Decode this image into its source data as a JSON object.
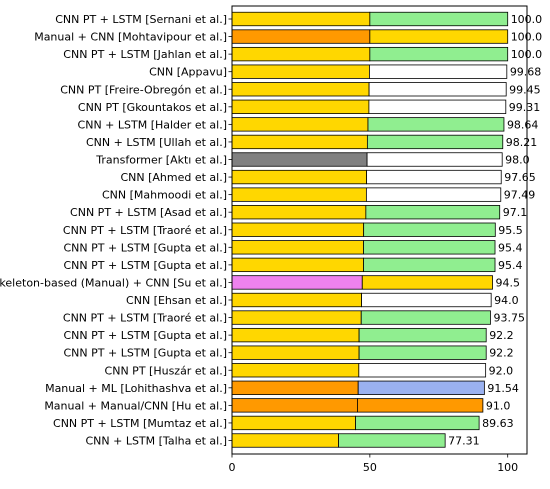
{
  "chart_data": {
    "type": "bar",
    "orientation": "horizontal",
    "stacked": true,
    "xlim": [
      0,
      107
    ],
    "xticks": [
      0,
      50,
      100
    ],
    "grid": false,
    "categories": [
      "CNN PT + LSTM [Sernani et al.]",
      "Manual + CNN [Mohtavipour et al.]",
      "CNN PT + LSTM [Jahlan et al.]",
      "CNN [Appavu]",
      "CNN PT [Freire-Obregón et al.]",
      "CNN PT [Gkountakos et al.]",
      "CNN + LSTM [Halder et al.]",
      "CNN + LSTM [Ullah et al.]",
      "Transformer [Aktı et al.]",
      "CNN [Ahmed et al.]",
      "CNN [Mahmoodi et al.]",
      "CNN PT + LSTM [Asad et al.]",
      "CNN PT + LSTM [Traoré et al.]",
      "CNN PT + LSTM [Gupta et al.]",
      "CNN PT + LSTM [Gupta et al.]",
      "Skeleton-based (Manual) + CNN [Su et al.]",
      "CNN [Ehsan et al.]",
      "CNN PT + LSTM [Traoré et al.]",
      "CNN PT + LSTM [Gupta et al.]",
      "CNN PT + LSTM [Gupta et al.]",
      "CNN PT [Huszár et al.]",
      "Manual + ML [Lohithashva et al.]",
      "Manual + Manual/CNN [Hu et al.]",
      "CNN PT + LSTM [Mumtaz et al.]",
      "CNN + LSTM [Talha et al.]"
    ],
    "values": [
      100.0,
      100.0,
      100.0,
      99.68,
      99.45,
      99.31,
      98.64,
      98.21,
      98.0,
      97.65,
      97.49,
      97.1,
      95.5,
      95.4,
      95.4,
      94.5,
      94.0,
      93.75,
      92.2,
      92.2,
      92.0,
      91.54,
      91.0,
      89.63,
      77.31
    ],
    "value_labels": [
      "100.0",
      "100.0",
      "100.0",
      "99.68",
      "99.45",
      "99.31",
      "98.64",
      "98.21",
      "98.0",
      "97.65",
      "97.49",
      "97.1",
      "95.5",
      "95.4",
      "95.4",
      "94.5",
      "94.0",
      "93.75",
      "92.2",
      "92.2",
      "92.0",
      "91.54",
      "91.0",
      "89.63",
      "77.31"
    ],
    "first_segment_fraction": 0.5,
    "first_segment_colors": [
      "#ffd700",
      "#ff9900",
      "#ffd700",
      "#ffd700",
      "#ffd700",
      "#ffd700",
      "#ffd700",
      "#ffd700",
      "#808080",
      "#ffd700",
      "#ffd700",
      "#ffd700",
      "#ffd700",
      "#ffd700",
      "#ffd700",
      "#ee82ee",
      "#ffd700",
      "#ffd700",
      "#ffd700",
      "#ffd700",
      "#ffd700",
      "#ff9900",
      "#ff9900",
      "#ffd700",
      "#ffd700"
    ],
    "second_segment_colors": [
      "#90ee90",
      "#ffd700",
      "#90ee90",
      "#ffffff",
      "#ffffff",
      "#ffffff",
      "#90ee90",
      "#90ee90",
      "#ffffff",
      "#ffffff",
      "#ffffff",
      "#90ee90",
      "#90ee90",
      "#90ee90",
      "#90ee90",
      "#ffd700",
      "#ffffff",
      "#90ee90",
      "#90ee90",
      "#90ee90",
      "#ffffff",
      "#9ab1f0",
      "#ff9900",
      "#90ee90",
      "#90ee90"
    ]
  }
}
